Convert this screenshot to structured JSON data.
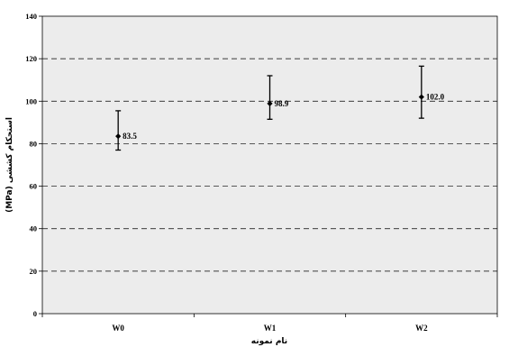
{
  "chart_data": {
    "type": "scatter",
    "title": "",
    "xlabel": "نام نمونه",
    "ylabel": "استحکام کششی (MPa)",
    "ylim": [
      0,
      140
    ],
    "yticks": [
      0,
      20,
      40,
      60,
      80,
      100,
      120,
      140
    ],
    "ytick_labels": [
      "0",
      "20",
      "40",
      "60",
      "80",
      "100",
      "120",
      "140"
    ],
    "categories": [
      "W0",
      "W1",
      "W2"
    ],
    "series": [
      {
        "values": [
          83.5,
          98.9,
          102.0
        ],
        "error_low": [
          77.0,
          91.5,
          92.0
        ],
        "error_high": [
          95.5,
          112.0,
          116.5
        ],
        "data_labels": [
          "83.5",
          "98.9",
          "102.0"
        ]
      }
    ],
    "grid": "horizontal-dashed",
    "legend": "none",
    "colors": {
      "plot_background": "#ececec",
      "marker": "#000000",
      "grid": "#000000"
    }
  }
}
